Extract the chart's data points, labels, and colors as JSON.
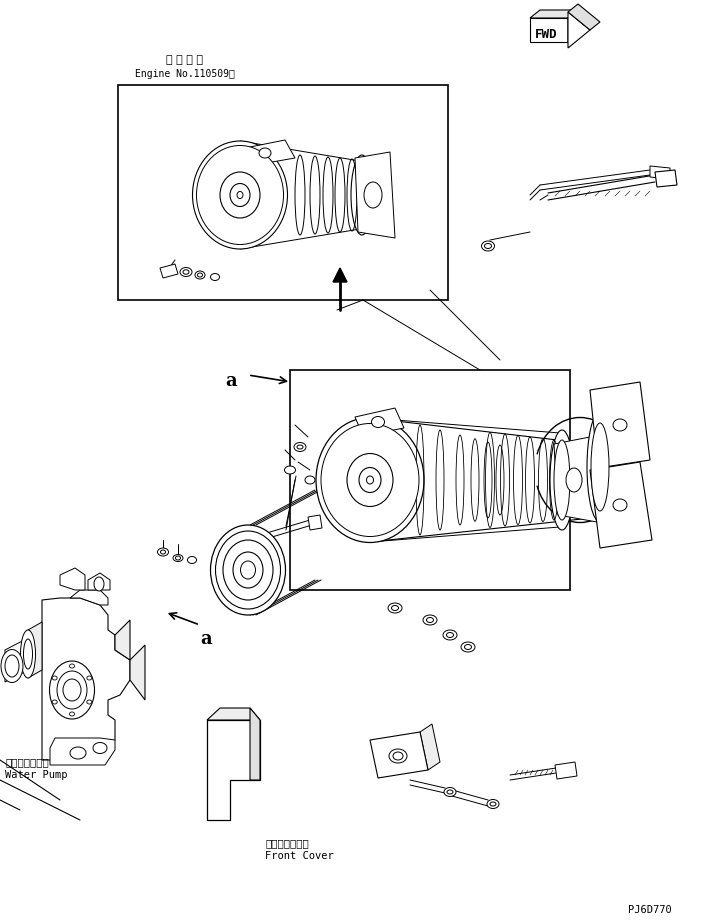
{
  "background_color": "#ffffff",
  "line_color": "#000000",
  "label_top_japanese": "通 用 号 機",
  "label_top_english": "Engine No.110509～",
  "label_fwd": "FWD",
  "label_a": "a",
  "label_water_pump_jp": "ウォータポンプ",
  "label_water_pump_en": "Water Pump",
  "label_front_cover_jp": "フロントカバー",
  "label_front_cover_en": "Front Cover",
  "label_pj6d770": "PJ6D770",
  "figsize": [
    7.26,
    9.21
  ],
  "dpi": 100
}
